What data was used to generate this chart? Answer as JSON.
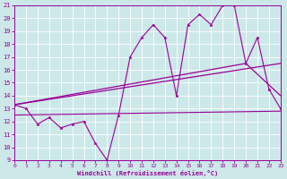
{
  "xlabel": "Windchill (Refroidissement éolien,°C)",
  "background_color": "#cce8e8",
  "grid_color": "#ffffff",
  "line_color": "#990099",
  "xmin": 0,
  "xmax": 23,
  "ymin": 9,
  "ymax": 21,
  "yticks": [
    9,
    10,
    11,
    12,
    13,
    14,
    15,
    16,
    17,
    18,
    19,
    20,
    21
  ],
  "xticks": [
    0,
    1,
    2,
    3,
    4,
    5,
    6,
    7,
    8,
    9,
    10,
    11,
    12,
    13,
    14,
    15,
    16,
    17,
    18,
    19,
    20,
    21,
    22,
    23
  ],
  "lines": [
    {
      "x": [
        0,
        1,
        2,
        3,
        4,
        5,
        6,
        7,
        8,
        9,
        10,
        11,
        12,
        13,
        14,
        15,
        16,
        17,
        18,
        19,
        20,
        21,
        22,
        23
      ],
      "y": [
        13.3,
        13,
        11.8,
        12.3,
        11.5,
        11.8,
        12,
        10.3,
        9,
        12.5,
        17,
        18.5,
        19.5,
        18.5,
        14,
        19.5,
        20.3,
        19.5,
        21,
        21,
        16.5,
        18.5,
        14.5,
        13
      ],
      "marker": "*",
      "markersize": 2.5,
      "lw": 0.8
    },
    {
      "x": [
        0,
        23
      ],
      "y": [
        13.3,
        16.5
      ],
      "marker": null,
      "markersize": 0,
      "lw": 0.9
    },
    {
      "x": [
        0,
        20,
        23
      ],
      "y": [
        13.3,
        16.5,
        14
      ],
      "marker": null,
      "markersize": 0,
      "lw": 0.9
    },
    {
      "x": [
        0,
        23
      ],
      "y": [
        12.5,
        12.8
      ],
      "marker": null,
      "markersize": 0,
      "lw": 0.8
    }
  ]
}
